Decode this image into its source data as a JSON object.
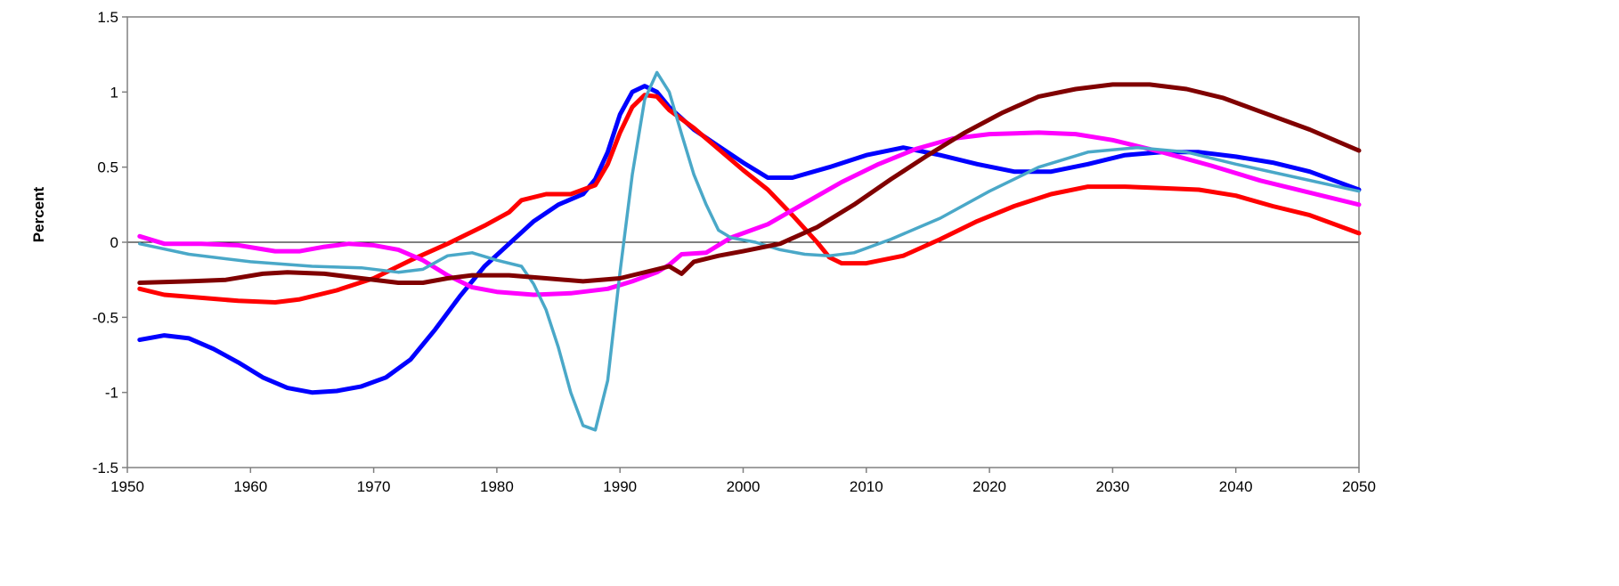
{
  "chart_data": {
    "type": "line",
    "title": "",
    "xlabel": "",
    "ylabel": "Percent",
    "xlim": [
      1950,
      2050
    ],
    "ylim": [
      -1.5,
      1.5
    ],
    "x_ticks": [
      "1950",
      "1960",
      "1970",
      "1980",
      "1990",
      "2000",
      "2010",
      "2020",
      "2030",
      "2040",
      "2050"
    ],
    "y_ticks": [
      "1.5",
      "1",
      "0.5",
      "0",
      "-0.5",
      "-1",
      "-1.5"
    ],
    "grid": false,
    "legend": "none",
    "series": [
      {
        "color": "#0000ff",
        "points": [
          [
            1951,
            -0.65
          ],
          [
            1953,
            -0.62
          ],
          [
            1955,
            -0.64
          ],
          [
            1957,
            -0.71
          ],
          [
            1959,
            -0.8
          ],
          [
            1961,
            -0.9
          ],
          [
            1963,
            -0.97
          ],
          [
            1965,
            -1.0
          ],
          [
            1967,
            -0.99
          ],
          [
            1969,
            -0.96
          ],
          [
            1971,
            -0.9
          ],
          [
            1973,
            -0.78
          ],
          [
            1975,
            -0.58
          ],
          [
            1977,
            -0.36
          ],
          [
            1979,
            -0.16
          ],
          [
            1981,
            -0.01
          ],
          [
            1983,
            0.14
          ],
          [
            1985,
            0.25
          ],
          [
            1987,
            0.32
          ],
          [
            1988,
            0.42
          ],
          [
            1989,
            0.6
          ],
          [
            1990,
            0.85
          ],
          [
            1991,
            1.0
          ],
          [
            1992,
            1.04
          ],
          [
            1993,
            1.0
          ],
          [
            1994,
            0.9
          ],
          [
            1996,
            0.75
          ],
          [
            1998,
            0.64
          ],
          [
            2000,
            0.53
          ],
          [
            2002,
            0.43
          ],
          [
            2004,
            0.43
          ],
          [
            2007,
            0.5
          ],
          [
            2010,
            0.58
          ],
          [
            2013,
            0.63
          ],
          [
            2016,
            0.58
          ],
          [
            2019,
            0.52
          ],
          [
            2022,
            0.47
          ],
          [
            2025,
            0.47
          ],
          [
            2028,
            0.52
          ],
          [
            2031,
            0.58
          ],
          [
            2034,
            0.6
          ],
          [
            2037,
            0.6
          ],
          [
            2040,
            0.57
          ],
          [
            2043,
            0.53
          ],
          [
            2046,
            0.47
          ],
          [
            2050,
            0.35
          ]
        ]
      },
      {
        "color": "#ff0000",
        "points": [
          [
            1951,
            -0.31
          ],
          [
            1953,
            -0.35
          ],
          [
            1956,
            -0.37
          ],
          [
            1959,
            -0.39
          ],
          [
            1962,
            -0.4
          ],
          [
            1964,
            -0.38
          ],
          [
            1967,
            -0.32
          ],
          [
            1970,
            -0.24
          ],
          [
            1973,
            -0.12
          ],
          [
            1976,
            -0.01
          ],
          [
            1979,
            0.11
          ],
          [
            1981,
            0.2
          ],
          [
            1982,
            0.28
          ],
          [
            1984,
            0.32
          ],
          [
            1986,
            0.32
          ],
          [
            1988,
            0.38
          ],
          [
            1989,
            0.52
          ],
          [
            1990,
            0.73
          ],
          [
            1991,
            0.9
          ],
          [
            1992,
            0.98
          ],
          [
            1993,
            0.97
          ],
          [
            1994,
            0.88
          ],
          [
            1996,
            0.76
          ],
          [
            1998,
            0.62
          ],
          [
            2000,
            0.48
          ],
          [
            2002,
            0.35
          ],
          [
            2004,
            0.18
          ],
          [
            2006,
            0.0
          ],
          [
            2007,
            -0.1
          ],
          [
            2008,
            -0.14
          ],
          [
            2010,
            -0.14
          ],
          [
            2013,
            -0.09
          ],
          [
            2016,
            0.02
          ],
          [
            2019,
            0.14
          ],
          [
            2022,
            0.24
          ],
          [
            2025,
            0.32
          ],
          [
            2028,
            0.37
          ],
          [
            2031,
            0.37
          ],
          [
            2034,
            0.36
          ],
          [
            2037,
            0.35
          ],
          [
            2040,
            0.31
          ],
          [
            2043,
            0.24
          ],
          [
            2046,
            0.18
          ],
          [
            2050,
            0.06
          ]
        ]
      },
      {
        "color": "#ff00ff",
        "points": [
          [
            1951,
            0.04
          ],
          [
            1953,
            -0.01
          ],
          [
            1956,
            -0.01
          ],
          [
            1959,
            -0.02
          ],
          [
            1962,
            -0.06
          ],
          [
            1964,
            -0.06
          ],
          [
            1966,
            -0.03
          ],
          [
            1968,
            -0.01
          ],
          [
            1970,
            -0.02
          ],
          [
            1972,
            -0.05
          ],
          [
            1974,
            -0.12
          ],
          [
            1976,
            -0.22
          ],
          [
            1978,
            -0.3
          ],
          [
            1980,
            -0.33
          ],
          [
            1983,
            -0.35
          ],
          [
            1986,
            -0.34
          ],
          [
            1989,
            -0.31
          ],
          [
            1991,
            -0.26
          ],
          [
            1993,
            -0.2
          ],
          [
            1994,
            -0.15
          ],
          [
            1995,
            -0.08
          ],
          [
            1997,
            -0.07
          ],
          [
            1999,
            0.03
          ],
          [
            2002,
            0.12
          ],
          [
            2005,
            0.26
          ],
          [
            2008,
            0.4
          ],
          [
            2011,
            0.52
          ],
          [
            2014,
            0.62
          ],
          [
            2017,
            0.69
          ],
          [
            2020,
            0.72
          ],
          [
            2024,
            0.73
          ],
          [
            2027,
            0.72
          ],
          [
            2030,
            0.68
          ],
          [
            2034,
            0.6
          ],
          [
            2038,
            0.51
          ],
          [
            2042,
            0.41
          ],
          [
            2046,
            0.33
          ],
          [
            2050,
            0.25
          ]
        ]
      },
      {
        "color": "#4aa8c8",
        "points": [
          [
            1951,
            -0.01
          ],
          [
            1955,
            -0.08
          ],
          [
            1960,
            -0.13
          ],
          [
            1965,
            -0.16
          ],
          [
            1969,
            -0.17
          ],
          [
            1972,
            -0.2
          ],
          [
            1974,
            -0.18
          ],
          [
            1976,
            -0.09
          ],
          [
            1978,
            -0.07
          ],
          [
            1980,
            -0.12
          ],
          [
            1982,
            -0.16
          ],
          [
            1983,
            -0.28
          ],
          [
            1984,
            -0.45
          ],
          [
            1985,
            -0.7
          ],
          [
            1986,
            -1.0
          ],
          [
            1987,
            -1.22
          ],
          [
            1988,
            -1.25
          ],
          [
            1989,
            -0.92
          ],
          [
            1990,
            -0.2
          ],
          [
            1991,
            0.45
          ],
          [
            1992,
            0.95
          ],
          [
            1993,
            1.13
          ],
          [
            1994,
            1.0
          ],
          [
            1995,
            0.72
          ],
          [
            1996,
            0.45
          ],
          [
            1997,
            0.25
          ],
          [
            1998,
            0.08
          ],
          [
            1999,
            0.03
          ],
          [
            2001,
            0.0
          ],
          [
            2003,
            -0.05
          ],
          [
            2005,
            -0.08
          ],
          [
            2007,
            -0.09
          ],
          [
            2009,
            -0.07
          ],
          [
            2012,
            0.02
          ],
          [
            2016,
            0.16
          ],
          [
            2020,
            0.34
          ],
          [
            2024,
            0.5
          ],
          [
            2028,
            0.6
          ],
          [
            2032,
            0.63
          ],
          [
            2036,
            0.6
          ],
          [
            2040,
            0.52
          ],
          [
            2045,
            0.43
          ],
          [
            2050,
            0.34
          ]
        ]
      },
      {
        "color": "#800000",
        "points": [
          [
            1951,
            -0.27
          ],
          [
            1955,
            -0.26
          ],
          [
            1958,
            -0.25
          ],
          [
            1961,
            -0.21
          ],
          [
            1963,
            -0.2
          ],
          [
            1966,
            -0.21
          ],
          [
            1969,
            -0.24
          ],
          [
            1972,
            -0.27
          ],
          [
            1974,
            -0.27
          ],
          [
            1976,
            -0.24
          ],
          [
            1978,
            -0.22
          ],
          [
            1981,
            -0.22
          ],
          [
            1984,
            -0.24
          ],
          [
            1987,
            -0.26
          ],
          [
            1990,
            -0.24
          ],
          [
            1993,
            -0.18
          ],
          [
            1994,
            -0.16
          ],
          [
            1995,
            -0.21
          ],
          [
            1996,
            -0.13
          ],
          [
            1998,
            -0.09
          ],
          [
            2000,
            -0.06
          ],
          [
            2003,
            -0.01
          ],
          [
            2006,
            0.1
          ],
          [
            2009,
            0.25
          ],
          [
            2012,
            0.42
          ],
          [
            2015,
            0.58
          ],
          [
            2018,
            0.73
          ],
          [
            2021,
            0.86
          ],
          [
            2024,
            0.97
          ],
          [
            2027,
            1.02
          ],
          [
            2030,
            1.05
          ],
          [
            2033,
            1.05
          ],
          [
            2036,
            1.02
          ],
          [
            2039,
            0.96
          ],
          [
            2042,
            0.87
          ],
          [
            2046,
            0.75
          ],
          [
            2050,
            0.61
          ]
        ]
      }
    ]
  }
}
